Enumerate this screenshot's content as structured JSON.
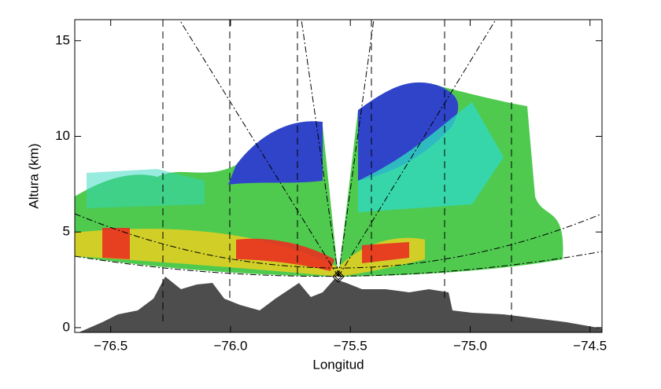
{
  "chart_data": {
    "type": "image",
    "xlabel": "Longitud",
    "ylabel": "Altura (km)",
    "xlim": [
      -76.65,
      -74.45
    ],
    "xticks": [
      {
        "value": -76.5,
        "label": "−76.5"
      },
      {
        "value": -76.0,
        "label": "−76.0"
      },
      {
        "value": -75.5,
        "label": "−75.5"
      },
      {
        "value": -75.0,
        "label": "−75.0"
      },
      {
        "value": -74.5,
        "label": "−74.5"
      }
    ],
    "ylim": [
      -0.25,
      16.1
    ],
    "yticks": [
      0,
      5,
      10,
      15
    ]
  }
}
